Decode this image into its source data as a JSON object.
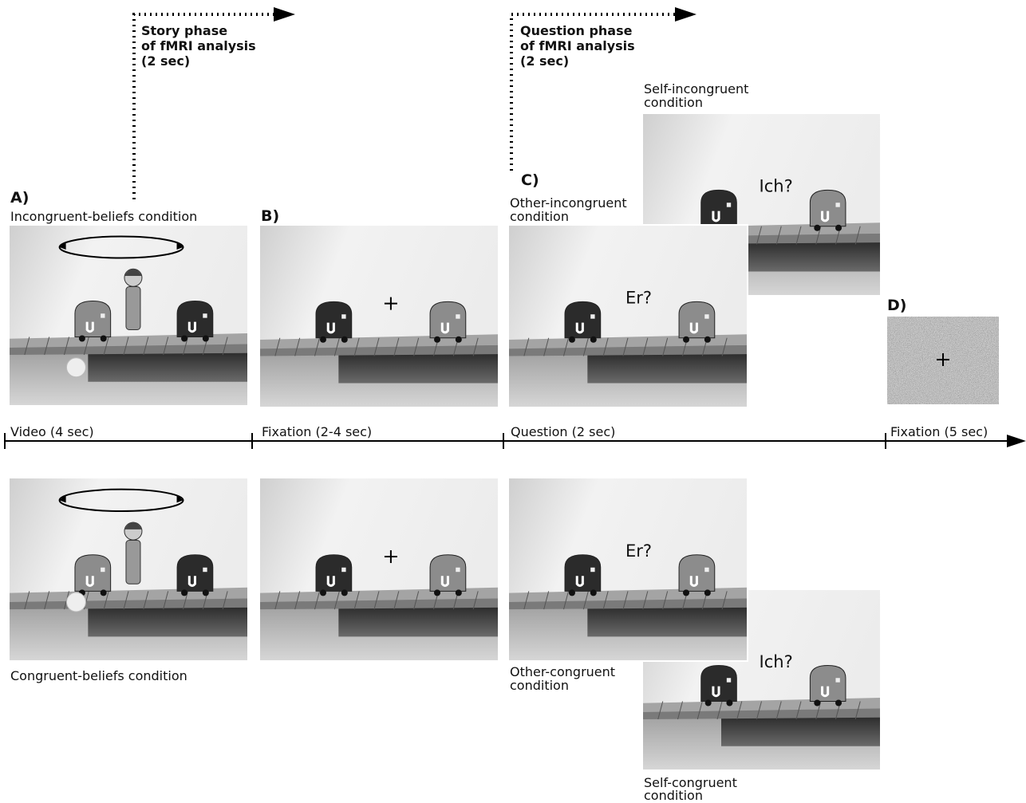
{
  "story_phase": {
    "lines": [
      "Story phase",
      "of fMRI analysis",
      "(2 sec)"
    ]
  },
  "question_phase": {
    "lines": [
      "Question phase",
      "of fMRI analysis",
      "(2 sec)"
    ]
  },
  "panel_a": {
    "label": "A)",
    "top_condition": "Incongruent-beliefs condition",
    "bottom_condition": "Congruent-beliefs condition"
  },
  "panel_b": {
    "label": "B)"
  },
  "panel_c": {
    "label": "C)",
    "other_incongruent": {
      "lines": [
        "Other-incongruent",
        "condition"
      ],
      "question": "Er?"
    },
    "self_incongruent": {
      "lines": [
        "Self-incongruent",
        "condition"
      ],
      "question": "Ich?"
    },
    "other_congruent": {
      "lines": [
        "Other-congruent",
        "condition"
      ],
      "question": "Er?"
    },
    "self_congruent": {
      "lines": [
        "Self-congruent",
        "condition"
      ],
      "question": "Ich?"
    }
  },
  "panel_d": {
    "label": "D)"
  },
  "timeline": [
    "Video (4 sec)",
    "Fixation (2-4 sec)",
    "Question (2 sec)",
    "Fixation (5 sec)"
  ]
}
